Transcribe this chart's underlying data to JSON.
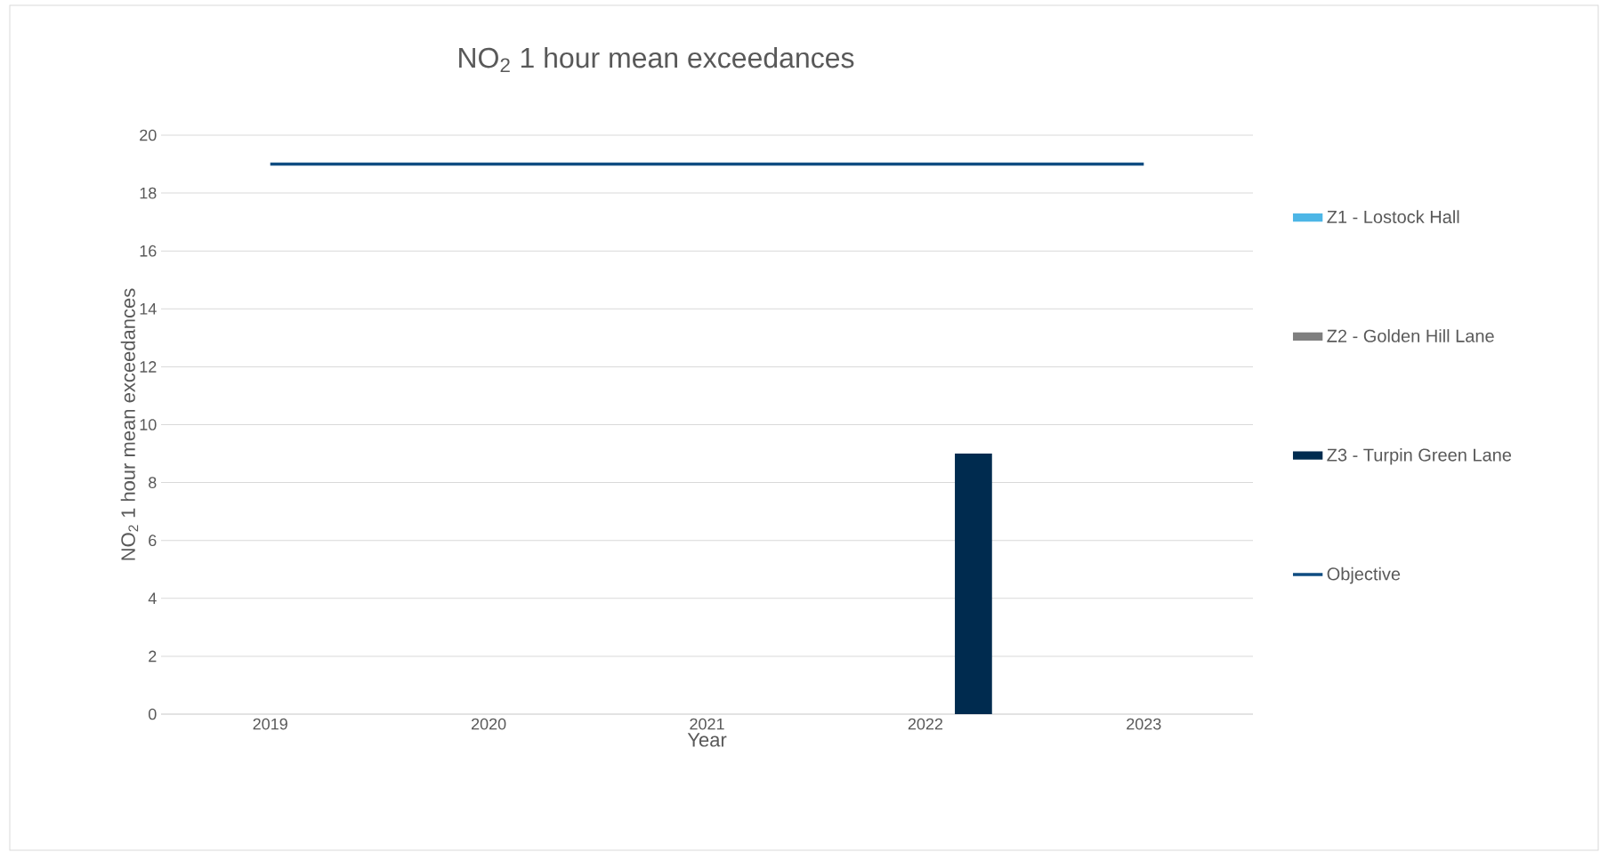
{
  "chart_data": {
    "type": "bar",
    "title": "NO$_{2}$ 1 hour mean exceedances",
    "xlabel": "Year",
    "ylabel": "NO$_{2}$ 1 hour mean exceedances",
    "categories": [
      "2019",
      "2020",
      "2021",
      "2022",
      "2023"
    ],
    "series": [
      {
        "name": "Z1 - Lostock Hall",
        "color": "#4db6e6",
        "values": [
          0,
          0,
          0,
          0,
          0
        ]
      },
      {
        "name": "Z2 - Golden Hill Lane",
        "color": "#7f7f7f",
        "values": [
          0,
          0,
          0,
          0,
          0
        ]
      },
      {
        "name": "Z3 - Turpin Green Lane",
        "color": "#002b4f",
        "values": [
          0,
          0,
          0,
          9,
          0
        ]
      },
      {
        "name": "Objective",
        "type": "line",
        "color": "#0f4c81",
        "values": [
          19,
          19,
          19,
          19,
          19
        ]
      }
    ],
    "ylim": [
      0,
      20
    ],
    "yticks": [
      0,
      2,
      4,
      6,
      8,
      10,
      12,
      14,
      16,
      18,
      20
    ],
    "grid": "y",
    "legend": "right"
  }
}
